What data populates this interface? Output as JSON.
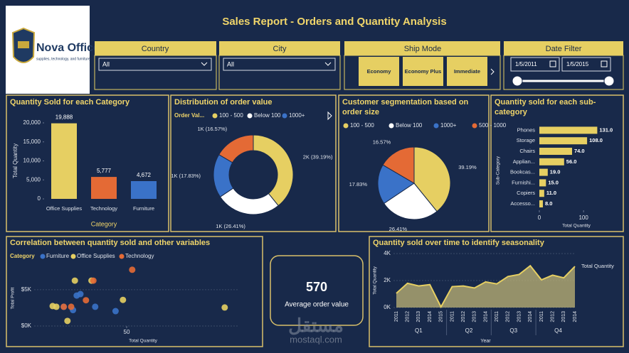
{
  "header": {
    "title": "Sales Report - Orders and Quantity Analysis"
  },
  "logo": {
    "name": "Nova Office",
    "tagline": "supplies, technology, and furniture"
  },
  "filters": {
    "country": {
      "label": "Country",
      "value": "All"
    },
    "city": {
      "label": "City",
      "value": "All"
    },
    "ship_mode": {
      "label": "Ship Mode",
      "options": [
        "Economy",
        "Economy Plus",
        "Immediate"
      ]
    },
    "date": {
      "label": "Date Filter",
      "start": "1/5/2011",
      "end": "1/5/2015"
    }
  },
  "kpi": {
    "value": 570,
    "label": "Average order value"
  },
  "watermark": {
    "arabic": "مستقل",
    "site": "mostaql.com"
  },
  "chart_data": [
    {
      "type": "bar",
      "title": "Quantity Sold for each Category",
      "categories": [
        "Office Supplies",
        "Technology",
        "Furniture"
      ],
      "values": [
        19888,
        5777,
        4672
      ],
      "value_labels": [
        "19,888",
        "5,777",
        "4,672"
      ],
      "colors": [
        "#e6cf62",
        "#e46a35",
        "#3a72c8"
      ],
      "ylim": [
        0,
        20000
      ],
      "yticks": [
        0,
        {
          "value": 5000,
          "label": "5,000"
        },
        {
          "value": 10000,
          "label": "10,000"
        },
        {
          "value": 15000,
          "label": "15,000"
        },
        {
          "value": 20000,
          "label": "20,000"
        }
      ],
      "xlabel": "Category",
      "ylabel": "Total Quantity"
    },
    {
      "type": "donut",
      "title": "Distribution of order value",
      "legend_title": "Order Val...",
      "legend": [
        "100 - 500",
        "Below 100",
        "1000+"
      ],
      "values": [
        39.19,
        26.41,
        17.83,
        16.57
      ],
      "value_labels": [
        "2K (39.19%)",
        "1K (26.41%)",
        "1K (17.83%)",
        "1K (16.57%)"
      ],
      "colors": [
        "#e6cf62",
        "#ffffff",
        "#3a72c8",
        "#e46a35"
      ]
    },
    {
      "type": "pie",
      "title": "Customer segmentation based on order size",
      "legend": [
        "100 - 500",
        "Below 100",
        "1000+",
        "500 - 1000"
      ],
      "values": [
        39.19,
        26.41,
        17.83,
        16.57
      ],
      "value_labels": [
        "39.19%",
        "26.41%",
        "17.83%",
        "16.57%"
      ],
      "colors": [
        "#e6cf62",
        "#ffffff",
        "#3a72c8",
        "#e46a35"
      ]
    },
    {
      "type": "hbar",
      "title": "Quantity sold for each sub-category",
      "categories": [
        "Phones",
        "Storage",
        "Chairs",
        "Applian...",
        "Bookcas...",
        "Furnishi...",
        "Copiers",
        "Accesso..."
      ],
      "values": [
        131,
        108,
        74,
        56,
        19,
        15,
        11,
        8
      ],
      "value_labels": [
        "131.0",
        "108.0",
        "74.0",
        "56.0",
        "19.0",
        "15.0",
        "11.0",
        "8.0"
      ],
      "color": "#e6cf62",
      "xlim": [
        0,
        140
      ],
      "xticks": [
        0,
        100
      ],
      "xlabel": "Total Quantity",
      "ylabel": "Sub-Category"
    },
    {
      "type": "scatter",
      "title": "Correlation between quantity sold and other variables",
      "legend_title": "Category",
      "series": [
        {
          "name": "Furniture",
          "color": "#3a72c8",
          "x": [
            23,
            25,
            21,
            33,
            44,
            16
          ],
          "values": [
            4200,
            4400,
            2200,
            2650,
            2050,
            2650
          ]
        },
        {
          "name": "Office Supplies",
          "color": "#e6cf62",
          "x": [
            22,
            10,
            12,
            31,
            48,
            103,
            18
          ],
          "values": [
            6250,
            2750,
            2650,
            6250,
            3600,
            2550,
            700
          ]
        },
        {
          "name": "Technology",
          "color": "#e46a35",
          "x": [
            53,
            32,
            28,
            16,
            20
          ],
          "values": [
            7750,
            6250,
            3550,
            2650,
            2650
          ]
        }
      ],
      "xlim": [
        0,
        110
      ],
      "xticks": [
        50
      ],
      "ylim": [
        0,
        9000
      ],
      "yticks": [
        {
          "value": 0,
          "label": "$0K"
        },
        {
          "value": 5000,
          "label": "$5K"
        }
      ],
      "xlabel": "Total Quantity",
      "ylabel": "Total Profit"
    },
    {
      "type": "area",
      "title": "Quantity sold over time to identify seasonality",
      "x": [
        [
          "Q1",
          "2011"
        ],
        [
          "Q1",
          "2012"
        ],
        [
          "Q1",
          "2013"
        ],
        [
          "Q1",
          "2014"
        ],
        [
          "Q1",
          "2015"
        ],
        [
          "Q2",
          "2011"
        ],
        [
          "Q2",
          "2012"
        ],
        [
          "Q2",
          "2013"
        ],
        [
          "Q2",
          "2014"
        ],
        [
          "Q3",
          "2011"
        ],
        [
          "Q3",
          "2012"
        ],
        [
          "Q3",
          "2013"
        ],
        [
          "Q3",
          "2014"
        ],
        [
          "Q4",
          "2011"
        ],
        [
          "Q4",
          "2012"
        ],
        [
          "Q4",
          "2013"
        ],
        [
          "Q4",
          "2014"
        ]
      ],
      "series_name": "Total Quantity",
      "values": [
        1050,
        1800,
        1600,
        1700,
        50,
        1550,
        1600,
        1450,
        1900,
        1750,
        2300,
        2450,
        3100,
        2050,
        2400,
        2200,
        3050
      ],
      "color": "#e6cf62",
      "ylim": [
        0,
        4000
      ],
      "yticks": [
        {
          "value": 0,
          "label": "0K"
        },
        {
          "value": 2000,
          "label": "2K"
        },
        {
          "value": 4000,
          "label": "4K"
        }
      ],
      "xlabel": "Year",
      "ylabel": "Total Quantity"
    }
  ]
}
